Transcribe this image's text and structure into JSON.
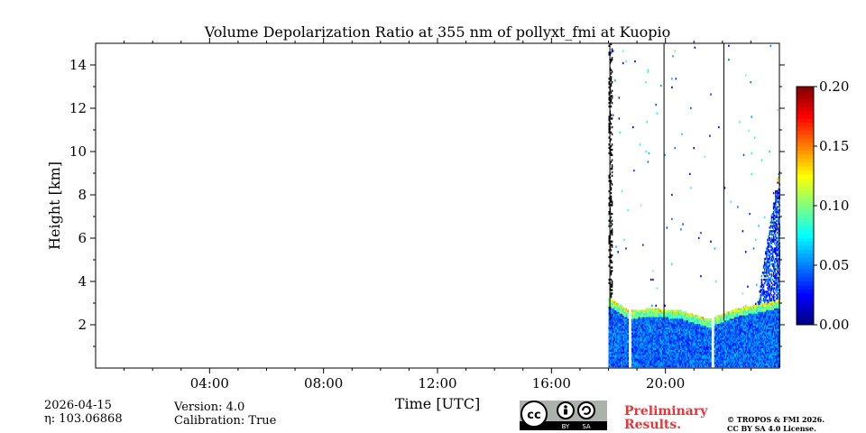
{
  "chart_data": {
    "type": "heatmap",
    "title": "Volume Depolarization Ratio at 355 nm of pollyxt_fmi at Kuopio",
    "xlabel": "Time [UTC]",
    "ylabel": "Height [km]",
    "xlim_hours": [
      0,
      24
    ],
    "ylim_km": [
      0,
      15
    ],
    "x_ticks": [
      {
        "hour": 4,
        "label": "04:00"
      },
      {
        "hour": 8,
        "label": "08:00"
      },
      {
        "hour": 12,
        "label": "12:00"
      },
      {
        "hour": 16,
        "label": "16:00"
      },
      {
        "hour": 20,
        "label": "20:00"
      }
    ],
    "y_ticks": [
      {
        "value": 2,
        "label": "2"
      },
      {
        "value": 4,
        "label": "4"
      },
      {
        "value": 6,
        "label": "6"
      },
      {
        "value": 8,
        "label": "8"
      },
      {
        "value": 10,
        "label": "10"
      },
      {
        "value": 12,
        "label": "12"
      },
      {
        "value": 14,
        "label": "14"
      }
    ],
    "colorbar": {
      "min": 0.0,
      "max": 0.2,
      "ticks": [
        {
          "value": 0.0,
          "label": "0.00"
        },
        {
          "value": 0.05,
          "label": "0.05"
        },
        {
          "value": 0.1,
          "label": "0.10"
        },
        {
          "value": 0.15,
          "label": "0.15"
        },
        {
          "value": 0.2,
          "label": "0.20"
        }
      ],
      "colormap": "jet"
    },
    "data_start_hour": 18.0,
    "data_gaps_hours": [
      [
        18.7,
        18.78
      ],
      [
        21.6,
        21.7
      ]
    ],
    "vertical_lines_hours": [
      18.05,
      19.95,
      22.05
    ],
    "boundary_layer_top_km": [
      {
        "hour": 18.0,
        "km": 3.1
      },
      {
        "hour": 18.7,
        "km": 2.5
      },
      {
        "hour": 19.5,
        "km": 2.6
      },
      {
        "hour": 20.5,
        "km": 2.5
      },
      {
        "hour": 21.5,
        "km": 2.1
      },
      {
        "hour": 22.5,
        "km": 2.6
      },
      {
        "hour": 23.3,
        "km": 2.8
      },
      {
        "hour": 24.0,
        "km": 3.0
      }
    ]
  },
  "footer": {
    "date": "2026-04-15",
    "eta_label": "η: 103.06868",
    "version": "Version: 4.0",
    "calibration": "Calibration: True",
    "preliminary_line1": "Preliminary",
    "preliminary_line2": "Results.",
    "copyright_line1": "© TROPOS & FMI 2026.",
    "copyright_line2": "CC BY SA 4.0 License.",
    "license_badge": {
      "cc": "cc",
      "by": "BY",
      "sa": "SA"
    }
  },
  "colors": {
    "prelim": "#e8353a"
  }
}
